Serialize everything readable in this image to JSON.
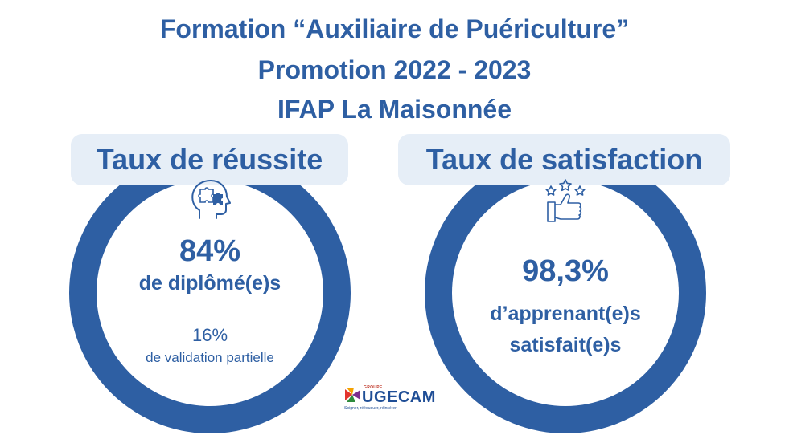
{
  "header": {
    "line1": "Formation “Auxiliaire de Puériculture”",
    "line2": "Promotion 2022 - 2023",
    "line3": "IFAP La Maisonnée"
  },
  "success": {
    "title": "Taux de réussite",
    "icon": "brain-puzzle-icon",
    "main_value": "84%",
    "main_label": "de diplômé(e)s",
    "secondary_value": "16%",
    "secondary_label": "de validation partielle"
  },
  "satisfaction": {
    "title": "Taux de satisfaction",
    "icon": "thumbs-up-stars-icon",
    "value": "98,3%",
    "label_line1": "d’apprenant(e)s",
    "label_line2": "satisfait(e)s"
  },
  "logo": {
    "group": "GROUPE",
    "name": "UGECAM",
    "tagline": "Soigner, rééduquer, réinsérer"
  },
  "colors": {
    "primary": "#2e5fa3",
    "pill": "#e6eef7"
  }
}
